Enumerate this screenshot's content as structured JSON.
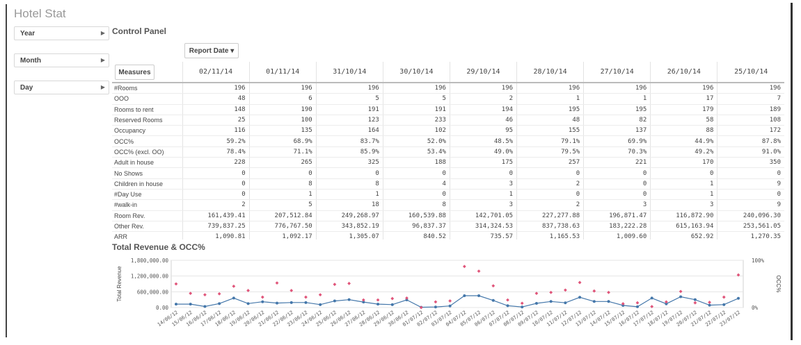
{
  "app": {
    "title": "Hotel Stat"
  },
  "filters": [
    {
      "label": "Year"
    },
    {
      "label": "Month"
    },
    {
      "label": "Day"
    }
  ],
  "control_panel": {
    "title": "Control Panel",
    "dimension_button": "Report Date ▾",
    "measures_button": "Measures",
    "columns": [
      "02/11/14",
      "01/11/14",
      "31/10/14",
      "30/10/14",
      "29/10/14",
      "28/10/14",
      "27/10/14",
      "26/10/14",
      "25/10/14"
    ],
    "rows": [
      {
        "label": "#Rooms",
        "values": [
          "196",
          "196",
          "196",
          "196",
          "196",
          "196",
          "196",
          "196",
          "196"
        ]
      },
      {
        "label": "OOO",
        "values": [
          "48",
          "6",
          "5",
          "5",
          "2",
          "1",
          "1",
          "17",
          "7"
        ]
      },
      {
        "label": "Rooms to rent",
        "values": [
          "148",
          "190",
          "191",
          "191",
          "194",
          "195",
          "195",
          "179",
          "189"
        ]
      },
      {
        "label": "Reserved Rooms",
        "values": [
          "25",
          "100",
          "123",
          "233",
          "46",
          "48",
          "82",
          "58",
          "108"
        ]
      },
      {
        "label": "Occupancy",
        "values": [
          "116",
          "135",
          "164",
          "102",
          "95",
          "155",
          "137",
          "88",
          "172"
        ]
      },
      {
        "label": "OCC%",
        "values": [
          "59.2%",
          "68.9%",
          "83.7%",
          "52.0%",
          "48.5%",
          "79.1%",
          "69.9%",
          "44.9%",
          "87.8%"
        ]
      },
      {
        "label": "OCC% (excl. OO)",
        "values": [
          "78.4%",
          "71.1%",
          "85.9%",
          "53.4%",
          "49.0%",
          "79.5%",
          "70.3%",
          "49.2%",
          "91.0%"
        ]
      },
      {
        "label": "Adult in house",
        "values": [
          "228",
          "265",
          "325",
          "188",
          "175",
          "257",
          "221",
          "170",
          "350"
        ]
      },
      {
        "label": "No Shows",
        "values": [
          "0",
          "0",
          "0",
          "0",
          "0",
          "0",
          "0",
          "0",
          "0"
        ]
      },
      {
        "label": "Children in house",
        "values": [
          "0",
          "8",
          "8",
          "4",
          "3",
          "2",
          "0",
          "1",
          "9"
        ]
      },
      {
        "label": "#Day Use",
        "values": [
          "0",
          "1",
          "1",
          "0",
          "1",
          "0",
          "0",
          "1",
          "0"
        ]
      },
      {
        "label": "#walk-in",
        "values": [
          "2",
          "5",
          "18",
          "8",
          "3",
          "2",
          "3",
          "3",
          "9"
        ]
      },
      {
        "label": "Room Rev.",
        "values": [
          "161,439.41",
          "207,512.84",
          "249,268.97",
          "160,539.88",
          "142,701.05",
          "227,277.88",
          "196,871.47",
          "116,872.90",
          "240,096.30"
        ]
      },
      {
        "label": "Other Rev.",
        "values": [
          "739,837.25",
          "776,767.50",
          "343,852.19",
          "96,837.37",
          "314,324.53",
          "837,738.63",
          "183,222.28",
          "615,163.94",
          "253,561.05"
        ]
      },
      {
        "label": "ARR",
        "values": [
          "1,090.81",
          "1,092.17",
          "1,305.07",
          "840.52",
          "735.57",
          "1,165.53",
          "1,009.60",
          "652.92",
          "1,270.35"
        ]
      }
    ]
  },
  "chart_data": {
    "type": "line",
    "title": "Total Revenue & OCC%",
    "ylabel": "Total Revenue",
    "y2label": "OCC%",
    "ylim": [
      0,
      1800000
    ],
    "y2lim": [
      0,
      100
    ],
    "yticks": [
      "1,800,000.00",
      "1,200,000.00",
      "600,000.00",
      "0.00"
    ],
    "y2ticks": [
      "100%",
      "0%"
    ],
    "grid": true,
    "colors": {
      "revenue": "#4477aa",
      "occ": "#e0557a"
    },
    "categories": [
      "14/06/12",
      "15/06/12",
      "16/06/12",
      "17/06/12",
      "18/06/12",
      "19/06/12",
      "20/06/12",
      "21/06/12",
      "22/06/12",
      "23/06/12",
      "24/06/12",
      "25/06/12",
      "26/06/12",
      "27/06/12",
      "28/06/12",
      "29/06/12",
      "30/06/12",
      "01/07/12",
      "02/07/12",
      "03/07/12",
      "04/07/12",
      "05/07/12",
      "06/07/12",
      "07/07/12",
      "08/07/12",
      "09/07/12",
      "10/07/12",
      "11/07/12",
      "12/07/12",
      "13/07/12",
      "14/07/12",
      "15/07/12",
      "16/07/12",
      "17/07/12",
      "18/07/12",
      "19/07/12",
      "20/07/12",
      "21/07/12",
      "22/07/12",
      "23/07/12"
    ],
    "series": [
      {
        "name": "Total Revenue",
        "type": "line",
        "values": [
          130000,
          130000,
          40000,
          150000,
          360000,
          150000,
          220000,
          170000,
          190000,
          190000,
          110000,
          250000,
          300000,
          210000,
          130000,
          110000,
          290000,
          10000,
          20000,
          60000,
          450000,
          450000,
          270000,
          70000,
          20000,
          160000,
          230000,
          180000,
          390000,
          230000,
          230000,
          80000,
          30000,
          360000,
          140000,
          410000,
          300000,
          90000,
          110000,
          350000
        ]
      },
      {
        "name": "OCC%",
        "type": "scatter",
        "values": [
          50,
          30,
          27,
          29,
          45,
          36,
          22,
          52,
          36,
          22,
          27,
          49,
          51,
          16,
          16,
          19,
          20,
          0,
          12,
          14,
          87,
          77,
          46,
          16,
          9,
          30,
          32,
          37,
          53,
          35,
          32,
          8,
          10,
          2,
          12,
          34,
          10,
          11,
          22,
          69
        ]
      }
    ]
  }
}
